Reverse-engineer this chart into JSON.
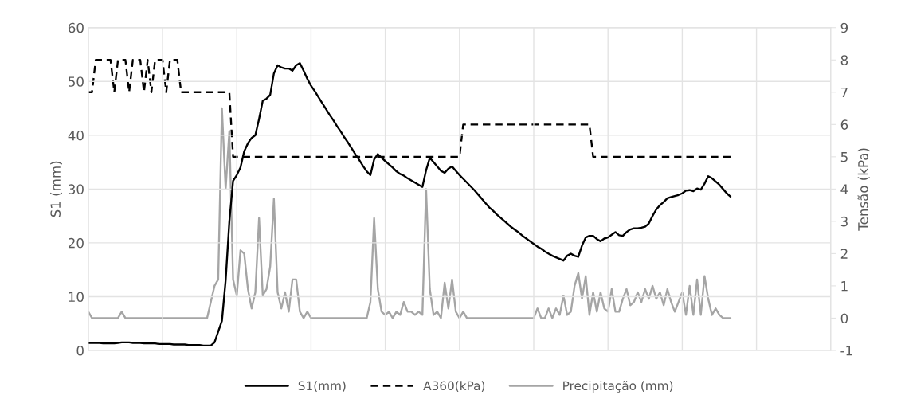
{
  "chart_data": {
    "type": "line",
    "ylabel": "S1 (mm)",
    "y2label": "Tensão (kPa)",
    "categories": [
      null,
      null,
      null,
      null,
      null,
      null,
      null,
      null,
      null,
      null,
      null,
      null,
      null,
      null,
      null,
      null,
      null,
      null,
      null,
      null,
      null,
      null,
      null,
      null,
      null,
      null,
      null,
      null,
      null,
      null,
      null,
      null,
      null,
      null,
      null,
      null,
      null,
      null,
      null,
      null,
      null,
      null,
      null,
      null,
      null,
      null,
      null,
      null,
      null,
      null,
      null,
      null,
      null,
      null,
      null,
      null,
      null,
      null,
      null,
      null,
      null,
      null,
      null,
      null,
      null,
      null,
      null,
      null,
      null,
      null,
      null,
      null,
      null,
      null,
      null,
      null,
      null,
      null,
      null,
      null,
      null,
      null,
      null,
      null,
      null,
      null,
      null,
      null,
      null,
      null,
      null,
      null,
      null,
      null,
      null,
      null,
      null,
      null,
      null,
      null,
      null,
      null,
      null,
      null,
      null,
      null,
      null,
      null,
      null,
      null,
      null,
      null,
      null,
      null,
      null,
      null,
      null,
      null,
      null,
      null,
      null,
      null,
      null,
      null,
      null,
      null,
      null,
      null,
      null,
      null,
      null,
      null,
      null,
      null,
      null,
      null,
      null,
      null,
      null,
      null,
      null,
      null,
      null,
      null,
      null,
      null,
      null,
      null,
      null,
      null,
      null,
      null,
      null,
      null,
      null,
      null,
      null,
      null,
      null,
      null,
      null,
      null,
      null,
      null,
      null,
      null,
      null,
      null,
      null,
      null,
      null,
      null,
      null,
      null,
      null,
      null,
      null,
      null,
      null,
      null,
      null,
      null,
      null,
      null,
      null,
      null,
      null,
      null,
      null,
      null,
      null,
      null,
      null,
      null,
      null,
      null,
      null,
      null,
      null,
      null,
      null
    ],
    "series": [
      {
        "name": "S1(mm)",
        "color": "#000000",
        "line_style": "solid",
        "values": [
          1.4,
          1.4,
          1.4,
          1.4,
          1.3,
          1.3,
          1.3,
          1.3,
          1.4,
          1.5,
          1.5,
          1.5,
          1.4,
          1.4,
          1.4,
          1.3,
          1.3,
          1.3,
          1.3,
          1.2,
          1.2,
          1.2,
          1.2,
          1.1,
          1.1,
          1.1,
          1.1,
          1.0,
          1.0,
          1.0,
          1.0,
          0.9,
          0.9,
          0.9,
          1.5,
          3.5,
          5.5,
          13,
          24,
          31.5,
          32.6,
          34,
          37,
          38.5,
          39.5,
          40,
          43,
          46.4,
          46.8,
          47.5,
          51.5,
          53,
          52.6,
          52.4,
          52.4,
          52,
          53,
          53.4,
          52,
          50.5,
          49.2,
          48.2,
          47.1,
          46,
          44.9,
          43.8,
          42.8,
          41.7,
          40.7,
          39.6,
          38.6,
          37.5,
          36.4,
          35.4,
          34.3,
          33.3,
          32.6,
          35.5,
          36.5,
          35.8,
          35.2,
          34.6,
          34.0,
          33.3,
          32.8,
          32.5,
          32.0,
          31.6,
          31.2,
          30.8,
          30.4,
          33.5,
          35.8,
          35.0,
          34.2,
          33.4,
          33.0,
          33.8,
          34.2,
          33.4,
          32.6,
          31.9,
          31.2,
          30.5,
          29.8,
          29.0,
          28.2,
          27.4,
          26.6,
          26.0,
          25.3,
          24.7,
          24.1,
          23.5,
          22.9,
          22.4,
          21.9,
          21.3,
          20.8,
          20.3,
          19.8,
          19.3,
          18.9,
          18.4,
          18.0,
          17.6,
          17.3,
          17.0,
          16.7,
          17.6,
          18.0,
          17.6,
          17.4,
          19.5,
          21.0,
          21.3,
          21.3,
          20.7,
          20.3,
          20.8,
          21.0,
          21.5,
          22.0,
          21.4,
          21.3,
          22.0,
          22.5,
          22.7,
          22.7,
          22.8,
          23.0,
          23.6,
          25.0,
          26.2,
          27.0,
          27.6,
          28.3,
          28.5,
          28.7,
          28.9,
          29.2,
          29.7,
          29.8,
          29.6,
          30.1,
          29.9,
          31.0,
          32.4,
          32.0,
          31.4,
          30.8,
          30.0,
          29.2,
          28.6,
          null,
          null,
          null,
          null,
          null,
          null,
          null,
          null,
          null,
          null,
          null,
          null,
          null,
          null,
          null,
          null,
          null,
          null,
          null,
          null,
          null,
          null,
          null,
          null,
          null,
          null,
          null
        ]
      },
      {
        "name": "A360(kPa)",
        "color": "#000000",
        "line_style": "dashed",
        "axis": "y2",
        "values": [
          7,
          7,
          8,
          8,
          8,
          8,
          8,
          7,
          8,
          8,
          8,
          7,
          8,
          8,
          8,
          7,
          8,
          7,
          8,
          8,
          8,
          7,
          8,
          8,
          8,
          7,
          7,
          7,
          7,
          7,
          7,
          7,
          7,
          7,
          7,
          7,
          7,
          7,
          7,
          5,
          5,
          5,
          5,
          5,
          5,
          5,
          5,
          5,
          5,
          5,
          5,
          5,
          5,
          5,
          5,
          5,
          5,
          5,
          5,
          5,
          5,
          5,
          5,
          5,
          5,
          5,
          5,
          5,
          5,
          5,
          5,
          5,
          5,
          5,
          5,
          5,
          5,
          5,
          5,
          5,
          5,
          5,
          5,
          5,
          5,
          5,
          5,
          5,
          5,
          5,
          5,
          5,
          5,
          5,
          5,
          5,
          5,
          5,
          5,
          5,
          5,
          6,
          6,
          6,
          6,
          6,
          6,
          6,
          6,
          6,
          6,
          6,
          6,
          6,
          6,
          6,
          6,
          6,
          6,
          6,
          6,
          6,
          6,
          6,
          6,
          6,
          6,
          6,
          6,
          6,
          6,
          6,
          6,
          6,
          6,
          6,
          5,
          5,
          5,
          5,
          5,
          5,
          5,
          5,
          5,
          5,
          5,
          5,
          5,
          5,
          5,
          5,
          5,
          5,
          5,
          5,
          5,
          5,
          5,
          5,
          5,
          5,
          5,
          5,
          5,
          5,
          5,
          5,
          5,
          5,
          5,
          5,
          5,
          5,
          null,
          null,
          null,
          null,
          null,
          null,
          null,
          null,
          null,
          null,
          null,
          null,
          null,
          null,
          null,
          null,
          null,
          null,
          null,
          null,
          null,
          null,
          null,
          null,
          null,
          null,
          null
        ]
      },
      {
        "name": "Precipitação (mm)",
        "color": "#a5a5a5",
        "line_style": "solid",
        "axis": "y2",
        "values": [
          0.2,
          0,
          0,
          0,
          0,
          0,
          0,
          0,
          0,
          0.2,
          0,
          0,
          0,
          0,
          0,
          0,
          0,
          0,
          0,
          0,
          0,
          0,
          0,
          0,
          0,
          0,
          0,
          0,
          0,
          0,
          0,
          0,
          0,
          0.5,
          1.0,
          1.2,
          6.5,
          4.0,
          5.8,
          1.2,
          0.7,
          2.1,
          2.0,
          0.9,
          0.3,
          0.8,
          3.1,
          0.7,
          0.9,
          1.6,
          3.7,
          0.8,
          0.3,
          0.8,
          0.2,
          1.2,
          1.2,
          0.2,
          0,
          0.2,
          0,
          0,
          0,
          0,
          0,
          0,
          0,
          0,
          0,
          0,
          0,
          0,
          0,
          0,
          0,
          0,
          0.5,
          3.1,
          0.9,
          0.2,
          0.1,
          0.2,
          0,
          0.2,
          0.1,
          0.5,
          0.2,
          0.2,
          0.1,
          0.2,
          0.1,
          4.0,
          0.9,
          0.1,
          0.2,
          0,
          1.1,
          0.3,
          1.2,
          0.2,
          0,
          0.2,
          0,
          0,
          0,
          0,
          0,
          0,
          0,
          0,
          0,
          0,
          0,
          0,
          0,
          0,
          0,
          0,
          0,
          0,
          0,
          0.3,
          0,
          0,
          0.3,
          0,
          0.3,
          0.1,
          0.7,
          0.1,
          0.2,
          1.0,
          1.4,
          0.6,
          1.3,
          0.1,
          0.8,
          0.2,
          0.8,
          0.3,
          0.2,
          0.9,
          0.2,
          0.2,
          0.6,
          0.9,
          0.4,
          0.5,
          0.8,
          0.5,
          0.9,
          0.6,
          1.0,
          0.6,
          0.8,
          0.4,
          0.9,
          0.5,
          0.2,
          0.5,
          0.8,
          0.1,
          1.0,
          0.1,
          1.2,
          0.1,
          1.3,
          0.6,
          0.1,
          0.3,
          0.1,
          0,
          0,
          0,
          null,
          null,
          null,
          null,
          null,
          null,
          null,
          null,
          null,
          null,
          null,
          null,
          null,
          null,
          null,
          null,
          null,
          null,
          null,
          null,
          null,
          null,
          null,
          null,
          null,
          null,
          null
        ]
      }
    ],
    "ylim": [
      0,
      60
    ],
    "yticks": [
      0,
      10,
      20,
      30,
      40,
      50,
      60
    ],
    "y2lim": [
      -1,
      9
    ],
    "y2ticks": [
      -1,
      0,
      1,
      2,
      3,
      4,
      5,
      6,
      7,
      8,
      9
    ],
    "grid": true,
    "legend": "bottom",
    "marker": "none"
  }
}
